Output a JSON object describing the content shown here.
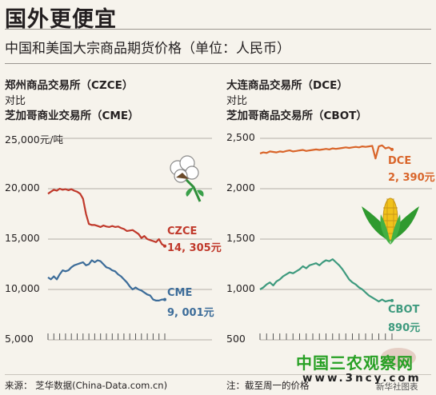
{
  "header": {
    "title": "国外更便宜",
    "subtitle": "中国和美国大宗商品期货价格（单位：人民币）"
  },
  "left_panel": {
    "title_line1": "郑州商品交易所（CZCE）",
    "vs": "对比",
    "title_line2": "芝加哥商业交易所（CME）",
    "y_ticks": [
      "25,000元/吨",
      "20,000",
      "15,000",
      "10,000",
      "5,000"
    ],
    "series_a_name": "CZCE",
    "series_a_value": "14, 305元",
    "series_b_name": "CME",
    "series_b_value": "9, 001元"
  },
  "right_panel": {
    "title_line1": "大连商品交易所（DCE）",
    "vs": "对比",
    "title_line2": "芝加哥商品交易所（CBOT）",
    "y_ticks": [
      "2,500",
      "2,000",
      "1,500",
      "1,000",
      "500"
    ],
    "series_a_name": "DCE",
    "series_a_value": "2, 390元",
    "series_b_name": "CBOT",
    "series_b_value": "890元"
  },
  "footer": {
    "source": "来源：  芝华数据(China-Data.com.cn)",
    "note": "注：截至周一的价格",
    "credit": "新华社图表"
  },
  "watermark": {
    "site_name": "中国三农观察网",
    "url": "www.3ncy.com"
  },
  "colors": {
    "czce": "#c0392b",
    "cme": "#3c6c99",
    "dce": "#d9652a",
    "cbot": "#3e9a7e",
    "grid": "#b4afa8",
    "background": "#f6f3ec"
  },
  "chart_data": [
    {
      "type": "line",
      "title": "郑州商品交易所（CZCE） 对比 芝加哥商业交易所（CME）",
      "y_unit": "元/吨",
      "ylim": [
        5000,
        25000
      ],
      "y_ticks": [
        5000,
        10000,
        15000,
        20000,
        25000
      ],
      "x_label": "",
      "series": [
        {
          "name": "CZCE",
          "color": "#c0392b",
          "values": [
            19500,
            19700,
            19900,
            19800,
            20000,
            19900,
            19950,
            19850,
            19950,
            19800,
            19700,
            19500,
            19000,
            17500,
            16500,
            16400,
            16400,
            16300,
            16200,
            16350,
            16250,
            16200,
            16300,
            16200,
            16250,
            16100,
            16000,
            15800,
            15850,
            15900,
            15700,
            15500,
            15100,
            15300,
            15000,
            14900,
            14800,
            14700,
            15000,
            14500,
            14305
          ],
          "last_label": "14,305"
        },
        {
          "name": "CME",
          "color": "#3c6c99",
          "values": [
            11200,
            11000,
            11300,
            11000,
            11500,
            11900,
            11800,
            11900,
            12200,
            12400,
            12500,
            12600,
            12700,
            12400,
            12500,
            12900,
            12700,
            12900,
            12800,
            12500,
            12200,
            12100,
            11900,
            11800,
            11500,
            11300,
            11000,
            10700,
            10300,
            10000,
            10200,
            10000,
            9900,
            9700,
            9500,
            9400,
            9000,
            8900,
            8900,
            9000,
            9001
          ],
          "last_label": "9,001"
        }
      ]
    },
    {
      "type": "line",
      "title": "大连商品交易所（DCE） 对比 芝加哥商品交易所（CBOT）",
      "y_unit": "元",
      "ylim": [
        500,
        2500
      ],
      "y_ticks": [
        500,
        1000,
        1500,
        2000,
        2500
      ],
      "x_label": "",
      "series": [
        {
          "name": "DCE",
          "color": "#d9652a",
          "values": [
            2350,
            2360,
            2355,
            2370,
            2365,
            2360,
            2370,
            2365,
            2375,
            2380,
            2370,
            2375,
            2380,
            2385,
            2375,
            2380,
            2385,
            2390,
            2385,
            2390,
            2395,
            2390,
            2400,
            2395,
            2400,
            2405,
            2410,
            2405,
            2410,
            2415,
            2410,
            2420,
            2415,
            2420,
            2425,
            2300,
            2420,
            2430,
            2400,
            2410,
            2390
          ],
          "last_label": "2,390"
        },
        {
          "name": "CBOT",
          "color": "#3e9a7e",
          "values": [
            1000,
            1020,
            1050,
            1070,
            1040,
            1080,
            1100,
            1130,
            1150,
            1170,
            1160,
            1180,
            1200,
            1230,
            1210,
            1240,
            1250,
            1260,
            1240,
            1270,
            1290,
            1280,
            1300,
            1270,
            1240,
            1200,
            1150,
            1100,
            1070,
            1050,
            1020,
            1000,
            970,
            940,
            920,
            900,
            880,
            900,
            880,
            890,
            890
          ],
          "last_label": "890"
        }
      ]
    }
  ]
}
